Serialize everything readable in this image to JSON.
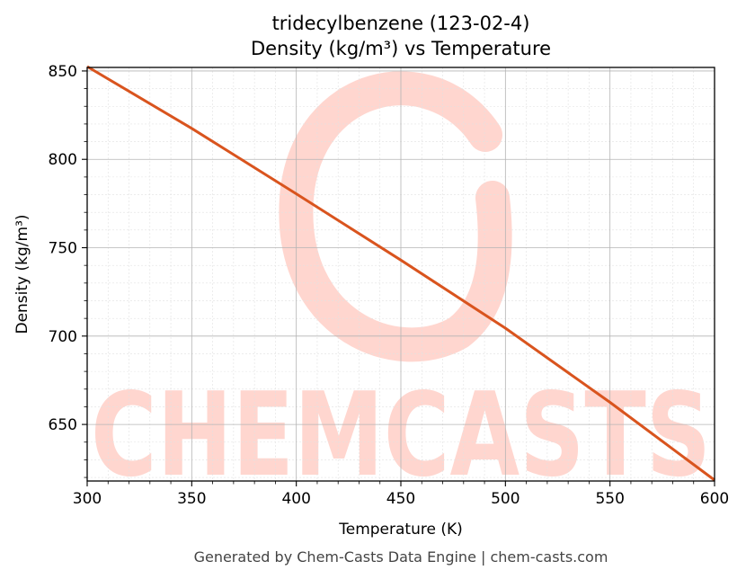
{
  "chart_data": {
    "type": "line",
    "title": "tridecylbenzene (123-02-4)",
    "subtitle": "Density (kg/m³) vs Temperature",
    "xlabel": "Temperature (K)",
    "ylabel": "Density (kg/m³)",
    "xlim": [
      300,
      600
    ],
    "ylim": [
      618,
      852
    ],
    "x_ticks": [
      300,
      350,
      400,
      450,
      500,
      550,
      600
    ],
    "y_ticks": [
      650,
      700,
      750,
      800,
      850
    ],
    "grid": true,
    "series": [
      {
        "color": "#d9541e",
        "x": [
          300,
          350,
          400,
          450,
          500,
          550,
          600
        ],
        "y": [
          852.5,
          817.5,
          780.5,
          743.0,
          704.5,
          662.5,
          618.5
        ]
      }
    ]
  },
  "watermark": {
    "text": "CHEMCASTS",
    "color": "#ffd6cf"
  },
  "footer": "Generated by Chem-Casts Data Engine | chem-casts.com"
}
